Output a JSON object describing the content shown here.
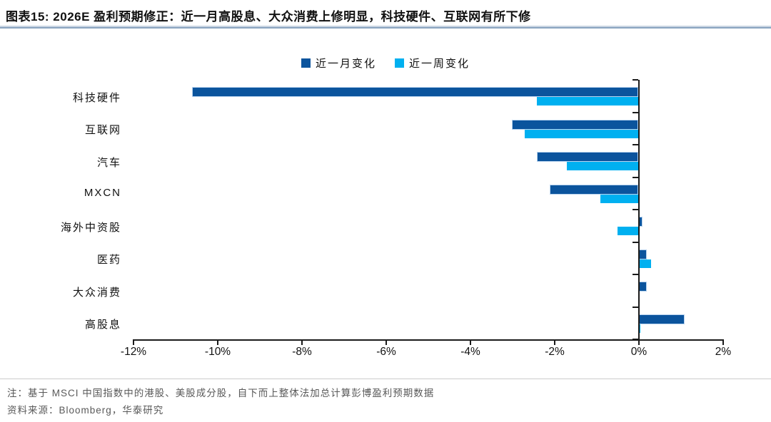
{
  "header": {
    "title": "图表15:  2026E 盈利预期修正：近一月高股息、大众消费上修明显，科技硬件、互联网有所下修"
  },
  "chart_data": {
    "type": "bar",
    "orientation": "horizontal",
    "categories": [
      "科技硬件",
      "互联网",
      "汽车",
      "MXCN",
      "海外中资股",
      "医药",
      "大众消费",
      "高股息"
    ],
    "series": [
      {
        "name": "近一月变化",
        "color": "#0B549D",
        "values": [
          -10.6,
          -3.0,
          -2.4,
          -2.1,
          0.1,
          0.2,
          0.2,
          1.1
        ]
      },
      {
        "name": "近一周变化",
        "color": "#00B0F0",
        "values": [
          -2.4,
          -2.7,
          -1.7,
          -0.9,
          -0.5,
          0.3,
          0.0,
          0.05
        ]
      }
    ],
    "xlim": [
      -12,
      2
    ],
    "x_tick_labels": [
      "-12%",
      "-10%",
      "-8%",
      "-6%",
      "-4%",
      "-2%",
      "0%",
      "2%"
    ],
    "xlabel": "",
    "ylabel": "",
    "grid": false,
    "legend_position": "top-center"
  },
  "notes": {
    "note": "注：基于 MSCI 中国指数中的港股、美股成分股，自下而上整体法加总计算彭博盈利预期数据",
    "source": "资料来源：Bloomberg，华泰研究"
  }
}
